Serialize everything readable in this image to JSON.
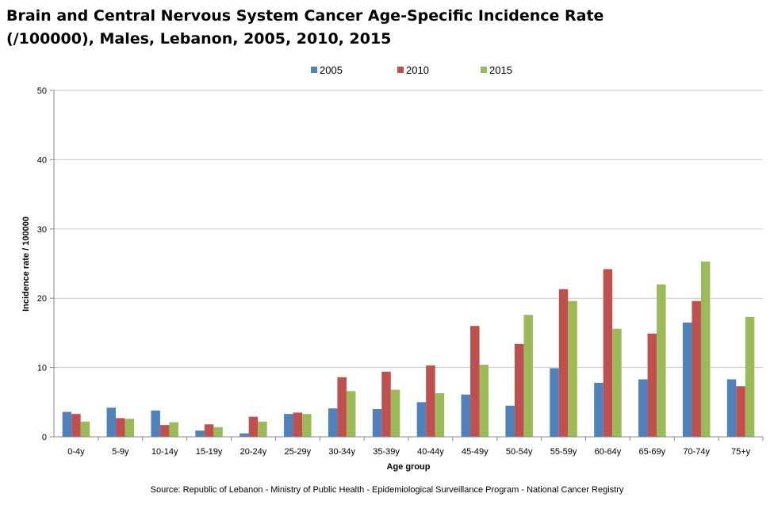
{
  "chart_data": {
    "type": "bar",
    "title_line1": "Brain and Central Nervous System Cancer Age-Specific Incidence Rate",
    "title_line2": "(/100000), Males, Lebanon, 2005, 2010, 2015",
    "xlabel": "Age group",
    "ylabel": "Incidence rate / 100000",
    "ylim": [
      0,
      50
    ],
    "yticks": [
      0,
      10,
      20,
      30,
      40,
      50
    ],
    "grid": true,
    "legend_position": "top-center",
    "categories": [
      "0-4y",
      "5-9y",
      "10-14y",
      "15-19y",
      "20-24y",
      "25-29y",
      "30-34y",
      "35-39y",
      "40-44y",
      "45-49y",
      "50-54y",
      "55-59y",
      "60-64y",
      "65-69y",
      "70-74y",
      "75+y"
    ],
    "series": [
      {
        "name": "2005",
        "color": "#4F81BD",
        "values": [
          3.6,
          4.2,
          3.8,
          0.9,
          0.5,
          3.3,
          4.1,
          4.0,
          5.0,
          6.1,
          4.5,
          9.9,
          7.8,
          8.3,
          16.5,
          8.3
        ]
      },
      {
        "name": "2010",
        "color": "#C0504D",
        "values": [
          3.3,
          2.7,
          1.7,
          1.8,
          2.9,
          3.5,
          8.6,
          9.4,
          10.3,
          16.0,
          13.4,
          21.3,
          24.2,
          14.9,
          19.6,
          7.3
        ]
      },
      {
        "name": "2015",
        "color": "#9BBB59",
        "values": [
          2.2,
          2.6,
          2.1,
          1.4,
          2.2,
          3.3,
          6.6,
          6.8,
          6.3,
          10.4,
          17.6,
          19.6,
          15.6,
          22.0,
          25.3,
          17.3
        ]
      }
    ],
    "source": "Source: Republic of Lebanon - Ministry of Public Health - Epidemiological Surveillance Program - National Cancer Registry"
  }
}
